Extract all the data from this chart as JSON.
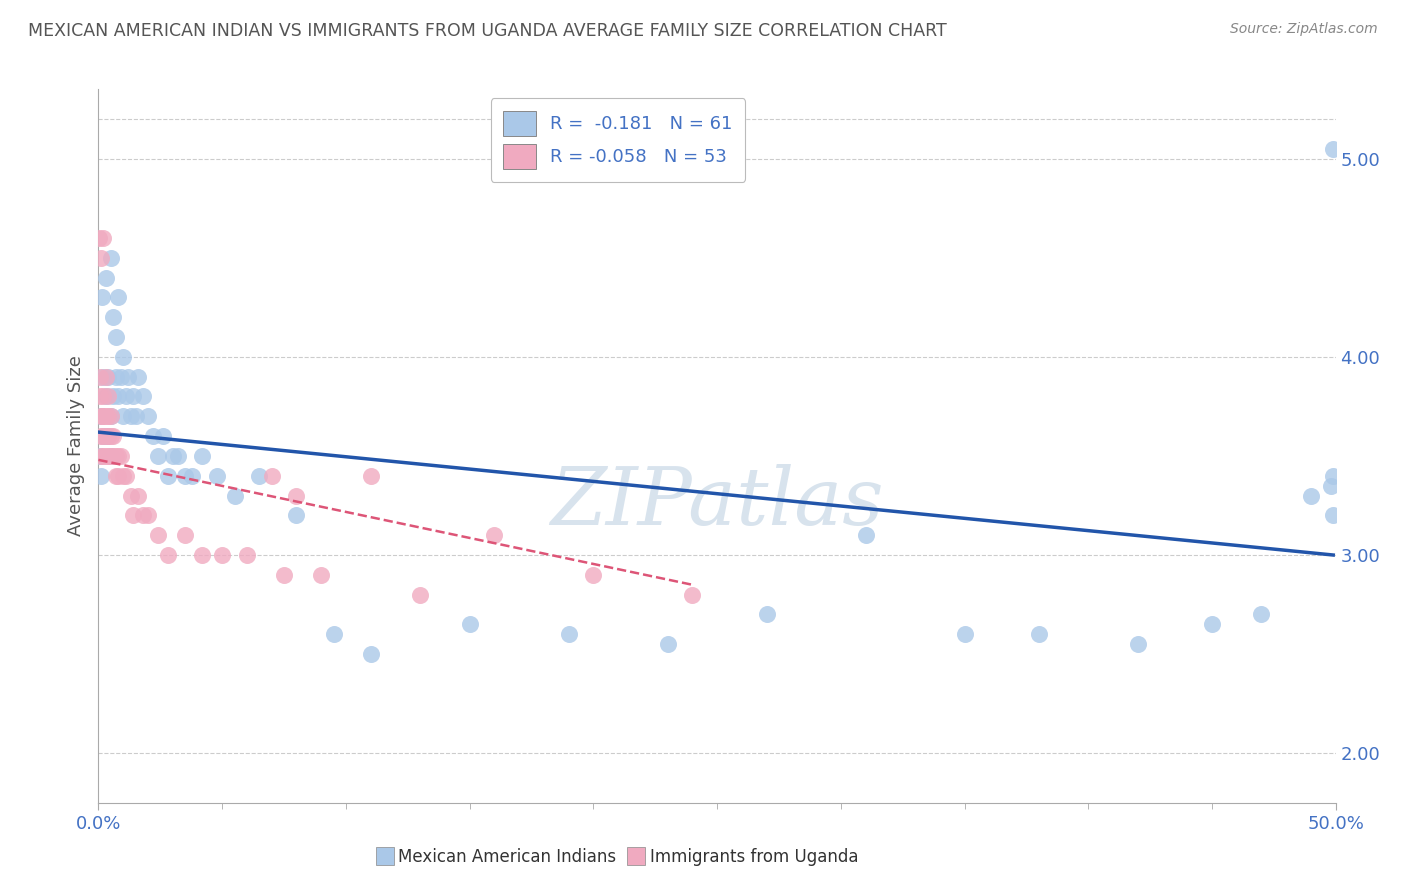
{
  "title": "MEXICAN AMERICAN INDIAN VS IMMIGRANTS FROM UGANDA AVERAGE FAMILY SIZE CORRELATION CHART",
  "source": "Source: ZipAtlas.com",
  "ylabel": "Average Family Size",
  "xlim": [
    0,
    0.5
  ],
  "ylim": [
    1.75,
    5.35
  ],
  "right_yticks": [
    2.0,
    3.0,
    4.0,
    5.0
  ],
  "watermark": "ZIPatlas",
  "legend_entry1": "R =  -0.181   N = 61",
  "legend_entry2": "R = -0.058   N = 53",
  "legend_label1": "Mexican American Indians",
  "legend_label2": "Immigrants from Uganda",
  "blue_color": "#aac8e8",
  "pink_color": "#f0aac0",
  "blue_line_color": "#2255aa",
  "pink_line_color": "#dd5577",
  "title_color": "#555555",
  "axis_color": "#4472c4",
  "blue_scatter_x": [
    0.0005,
    0.001,
    0.001,
    0.0015,
    0.002,
    0.002,
    0.003,
    0.003,
    0.003,
    0.004,
    0.004,
    0.005,
    0.005,
    0.005,
    0.006,
    0.006,
    0.007,
    0.007,
    0.008,
    0.008,
    0.009,
    0.01,
    0.01,
    0.011,
    0.012,
    0.013,
    0.014,
    0.015,
    0.016,
    0.018,
    0.02,
    0.022,
    0.024,
    0.026,
    0.028,
    0.03,
    0.032,
    0.035,
    0.038,
    0.042,
    0.048,
    0.055,
    0.065,
    0.08,
    0.095,
    0.11,
    0.15,
    0.19,
    0.23,
    0.27,
    0.31,
    0.35,
    0.38,
    0.42,
    0.45,
    0.47,
    0.49,
    0.498,
    0.499,
    0.499,
    0.499
  ],
  "blue_scatter_y": [
    3.5,
    3.7,
    3.4,
    4.3,
    3.9,
    3.6,
    4.4,
    3.8,
    3.6,
    3.9,
    3.6,
    4.5,
    3.7,
    3.5,
    4.2,
    3.8,
    4.1,
    3.9,
    4.3,
    3.8,
    3.9,
    4.0,
    3.7,
    3.8,
    3.9,
    3.7,
    3.8,
    3.7,
    3.9,
    3.8,
    3.7,
    3.6,
    3.5,
    3.6,
    3.4,
    3.5,
    3.5,
    3.4,
    3.4,
    3.5,
    3.4,
    3.3,
    3.4,
    3.2,
    2.6,
    2.5,
    2.65,
    2.6,
    2.55,
    2.7,
    3.1,
    2.6,
    2.6,
    2.55,
    2.65,
    2.7,
    3.3,
    3.35,
    3.4,
    3.2,
    5.05
  ],
  "pink_scatter_x": [
    0.0003,
    0.0005,
    0.0007,
    0.001,
    0.001,
    0.001,
    0.001,
    0.0015,
    0.0015,
    0.002,
    0.002,
    0.002,
    0.002,
    0.003,
    0.003,
    0.003,
    0.003,
    0.004,
    0.004,
    0.004,
    0.004,
    0.005,
    0.005,
    0.005,
    0.006,
    0.006,
    0.007,
    0.007,
    0.008,
    0.008,
    0.009,
    0.01,
    0.011,
    0.013,
    0.014,
    0.016,
    0.018,
    0.02,
    0.024,
    0.028,
    0.035,
    0.042,
    0.05,
    0.06,
    0.075,
    0.09,
    0.11,
    0.13,
    0.07,
    0.08,
    0.16,
    0.2,
    0.24
  ],
  "pink_scatter_y": [
    4.6,
    3.8,
    3.9,
    3.7,
    3.6,
    3.5,
    4.5,
    3.7,
    3.6,
    4.6,
    3.8,
    3.7,
    3.5,
    3.9,
    3.7,
    3.6,
    3.5,
    3.8,
    3.7,
    3.6,
    3.5,
    3.7,
    3.6,
    3.5,
    3.6,
    3.5,
    3.5,
    3.4,
    3.5,
    3.4,
    3.5,
    3.4,
    3.4,
    3.3,
    3.2,
    3.3,
    3.2,
    3.2,
    3.1,
    3.0,
    3.1,
    3.0,
    3.0,
    3.0,
    2.9,
    2.9,
    3.4,
    2.8,
    3.4,
    3.3,
    3.1,
    2.9,
    2.8
  ],
  "blue_trend_x": [
    0.0,
    0.499
  ],
  "blue_trend_y": [
    3.62,
    3.0
  ],
  "pink_trend_x": [
    0.0,
    0.24
  ],
  "pink_trend_y": [
    3.48,
    2.85
  ],
  "xtick_positions": [
    0.0,
    0.5
  ],
  "xtick_labels": [
    "0.0%",
    "50.0%"
  ]
}
